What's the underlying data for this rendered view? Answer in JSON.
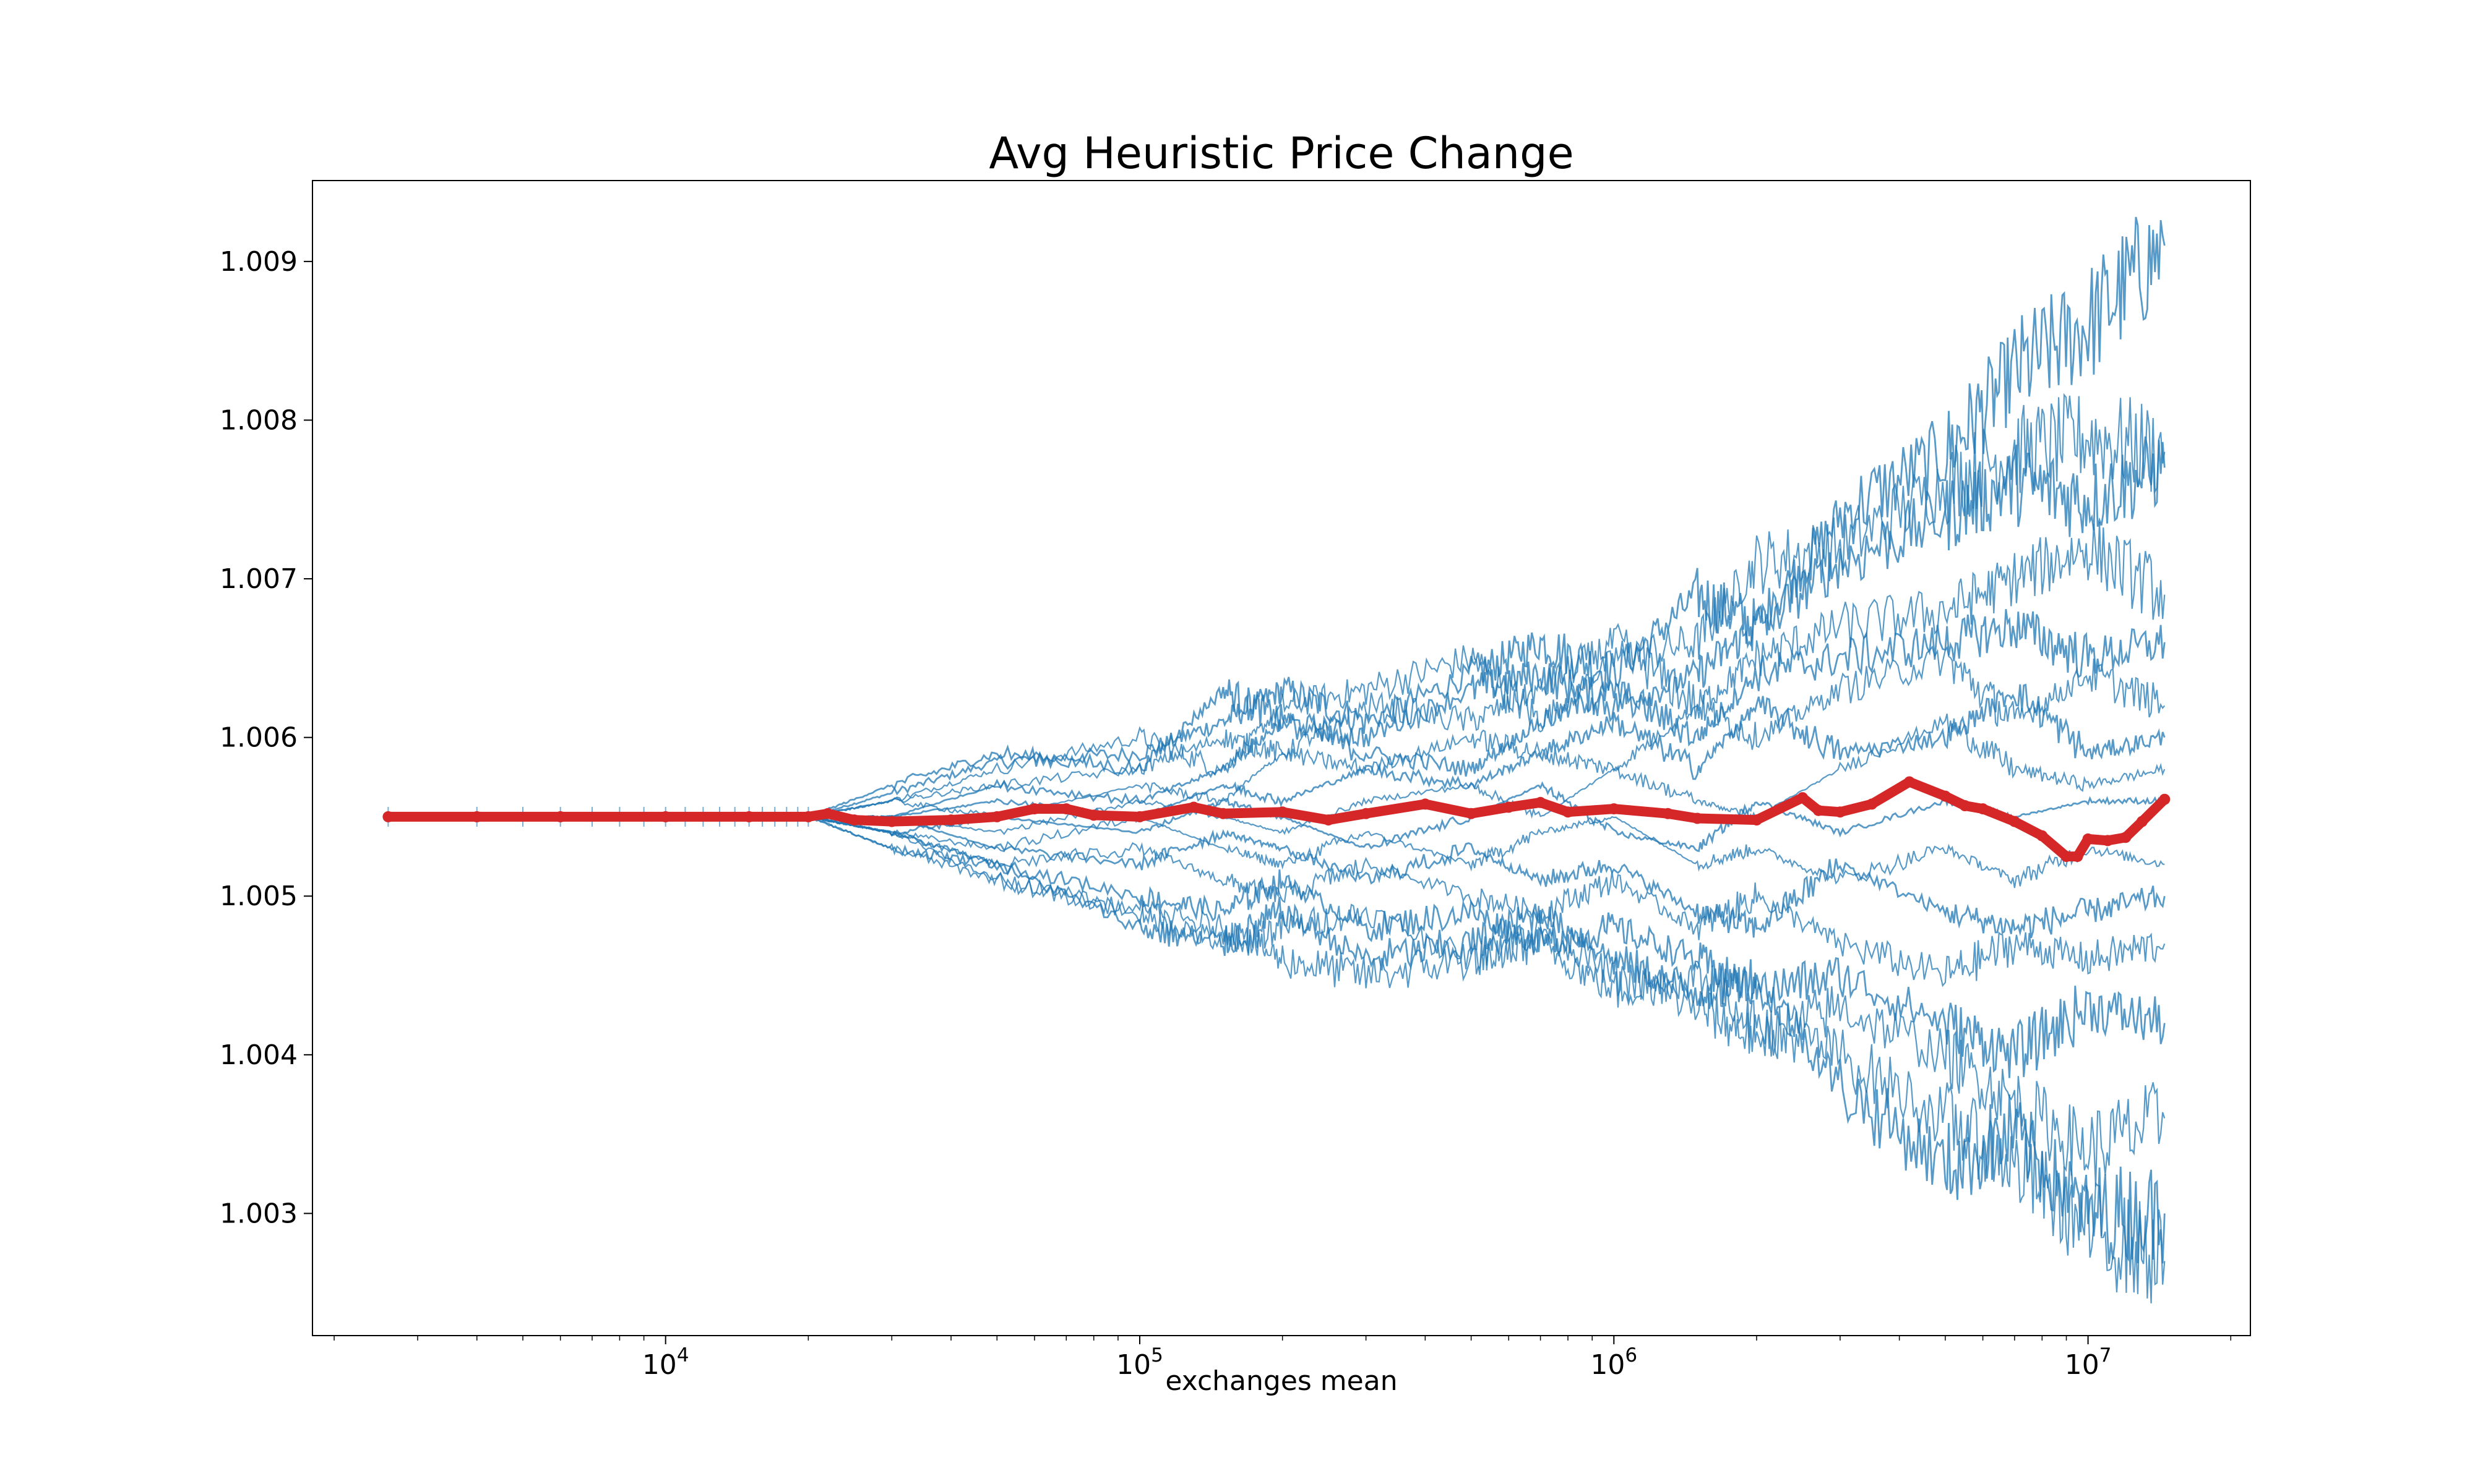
{
  "chart_data": {
    "type": "line",
    "title": "Avg Heuristic Price Change",
    "xlabel": "exchanges mean",
    "ylabel": "",
    "xscale": "log",
    "xlim": [
      1800,
      22000000
    ],
    "ylim": [
      1.00223,
      1.00951
    ],
    "grid": false,
    "x_ticks": [
      {
        "value": 10000,
        "base": "10",
        "exp": "4"
      },
      {
        "value": 100000,
        "base": "10",
        "exp": "5"
      },
      {
        "value": 1000000,
        "base": "10",
        "exp": "6"
      },
      {
        "value": 10000000,
        "base": "10",
        "exp": "7"
      }
    ],
    "y_ticks": [
      {
        "value": 1.003,
        "label": "1.003"
      },
      {
        "value": 1.004,
        "label": "1.004"
      },
      {
        "value": 1.005,
        "label": "1.005"
      },
      {
        "value": 1.006,
        "label": "1.006"
      },
      {
        "value": 1.007,
        "label": "1.007"
      },
      {
        "value": 1.008,
        "label": "1.008"
      },
      {
        "value": 1.009,
        "label": "1.009"
      }
    ],
    "colors": {
      "runs": "#1f77b4",
      "mean": "#d62728",
      "axes": "#000000"
    },
    "mean_series": {
      "x": [
        2600,
        4000,
        6000,
        10000,
        15000,
        20000,
        22000,
        25000,
        30000,
        40000,
        50000,
        60000,
        70000,
        80000,
        100000,
        130000,
        150000,
        200000,
        250000,
        300000,
        400000,
        500000,
        600000,
        700000,
        800000,
        1000000,
        1300000,
        1500000,
        2000000,
        2500000,
        2700000,
        3000000,
        3500000,
        4200000,
        5000000,
        5500000,
        6000000,
        7000000,
        8000000,
        9000000,
        9500000,
        10000000,
        11000000,
        12000000,
        13000000,
        14500000
      ],
      "y": [
        1.0055,
        1.0055,
        1.0055,
        1.0055,
        1.0055,
        1.0055,
        1.00552,
        1.00548,
        1.00547,
        1.00548,
        1.0055,
        1.00555,
        1.00555,
        1.00551,
        1.0055,
        1.00556,
        1.00552,
        1.00553,
        1.00548,
        1.00552,
        1.00558,
        1.00552,
        1.00556,
        1.00559,
        1.00553,
        1.00555,
        1.00552,
        1.00549,
        1.00548,
        1.00562,
        1.00554,
        1.00553,
        1.00558,
        1.00572,
        1.00563,
        1.00557,
        1.00555,
        1.00547,
        1.00538,
        1.00525,
        1.00525,
        1.00536,
        1.00535,
        1.00537,
        1.00547,
        1.00561
      ]
    },
    "runs_series": {
      "x": [
        2600,
        20000,
        30000,
        50000,
        100000,
        150000,
        200000,
        300000,
        500000,
        700000,
        1000000,
        1500000,
        2000000,
        3000000,
        5000000,
        7000000,
        10000000,
        14500000
      ],
      "values": [
        [
          1.0055,
          1.0055,
          1.00565,
          1.00585,
          1.0059,
          1.0061,
          1.0063,
          1.0061,
          1.0064,
          1.0066,
          1.0064,
          1.0069,
          1.0067,
          1.0074,
          1.0078,
          1.0083,
          1.0086,
          1.0091
        ],
        [
          1.0055,
          1.0055,
          1.0056,
          1.0058,
          1.006,
          1.0058,
          1.0062,
          1.0063,
          1.0065,
          1.0061,
          1.0065,
          1.0066,
          1.0071,
          1.0072,
          1.0076,
          1.0078,
          1.0079,
          1.0078
        ],
        [
          1.0055,
          1.0055,
          1.0057,
          1.0059,
          1.0058,
          1.0063,
          1.0061,
          1.006,
          1.0063,
          1.0064,
          1.0062,
          1.0064,
          1.0067,
          1.0071,
          1.0074,
          1.0076,
          1.0075,
          1.0077
        ],
        [
          1.0055,
          1.0055,
          1.0056,
          1.0057,
          1.0058,
          1.006,
          1.0059,
          1.0062,
          1.0061,
          1.0063,
          1.0066,
          1.0062,
          1.0065,
          1.0067,
          1.0068,
          1.007,
          1.0072,
          1.0069
        ],
        [
          1.0055,
          1.0055,
          1.0055,
          1.0057,
          1.0056,
          1.0058,
          1.0061,
          1.0059,
          1.0058,
          1.0061,
          1.0063,
          1.006,
          1.0064,
          1.0065,
          1.0066,
          1.0067,
          1.0065,
          1.0066
        ],
        [
          1.0055,
          1.0055,
          1.0056,
          1.0055,
          1.0057,
          1.0056,
          1.0059,
          1.0058,
          1.006,
          1.0059,
          1.0058,
          1.0062,
          1.006,
          1.0063,
          1.0065,
          1.0061,
          1.0064,
          1.0062
        ],
        [
          1.0055,
          1.0055,
          1.0055,
          1.0056,
          1.0055,
          1.0057,
          1.0056,
          1.0058,
          1.0057,
          1.0059,
          1.0061,
          1.0058,
          1.0062,
          1.0059,
          1.006,
          1.0063,
          1.0059,
          1.006
        ],
        [
          1.0055,
          1.0055,
          1.0055,
          1.0054,
          1.0056,
          1.0055,
          1.0054,
          1.0056,
          1.0057,
          1.0055,
          1.0058,
          1.0056,
          1.0055,
          1.0058,
          1.0061,
          1.0058,
          1.0057,
          1.0058
        ],
        [
          1.0055,
          1.0055,
          1.0054,
          1.0055,
          1.0054,
          1.0056,
          1.0055,
          1.0053,
          1.0055,
          1.0057,
          1.0054,
          1.0053,
          1.0056,
          1.0054,
          1.0056,
          1.0055,
          1.0056,
          1.0056
        ],
        [
          1.0055,
          1.0055,
          1.0054,
          1.0053,
          1.0055,
          1.0053,
          1.0052,
          1.0054,
          1.0052,
          1.0054,
          1.0055,
          1.0052,
          1.0053,
          1.0051,
          1.0053,
          1.0051,
          1.0053,
          1.0052
        ],
        [
          1.0055,
          1.0055,
          1.0055,
          1.0053,
          1.0052,
          1.0054,
          1.0053,
          1.0051,
          1.0053,
          1.0051,
          1.0052,
          1.0049,
          1.0048,
          1.0052,
          1.0049,
          1.0048,
          1.0049,
          1.005
        ],
        [
          1.0055,
          1.0055,
          1.0054,
          1.0052,
          1.0053,
          1.0051,
          1.005,
          1.0052,
          1.005,
          1.0049,
          1.0051,
          1.0048,
          1.005,
          1.0047,
          1.0045,
          1.0047,
          1.0046,
          1.0047
        ],
        [
          1.0055,
          1.0055,
          1.0054,
          1.0052,
          1.005,
          1.0049,
          1.0051,
          1.0048,
          1.0049,
          1.0047,
          1.0048,
          1.0046,
          1.0044,
          1.0045,
          1.0042,
          1.004,
          1.0043,
          1.0042
        ],
        [
          1.0055,
          1.0055,
          1.0053,
          1.0051,
          1.0049,
          1.0047,
          1.0048,
          1.0049,
          1.0046,
          1.0048,
          1.0045,
          1.0043,
          1.0041,
          1.0043,
          1.004,
          1.0037,
          1.0034,
          1.0036
        ],
        [
          1.0055,
          1.0055,
          1.0053,
          1.0052,
          1.0048,
          1.0047,
          1.0049,
          1.0046,
          1.0047,
          1.0049,
          1.0046,
          1.0044,
          1.0045,
          1.0038,
          1.0033,
          1.0035,
          1.003,
          1.003
        ],
        [
          1.0055,
          1.0055,
          1.0054,
          1.0051,
          1.0049,
          1.0048,
          1.0046,
          1.0045,
          1.0046,
          1.0047,
          1.0044,
          1.0045,
          1.0042,
          1.004,
          1.0036,
          1.0033,
          1.0029,
          1.0027
        ]
      ]
    }
  }
}
